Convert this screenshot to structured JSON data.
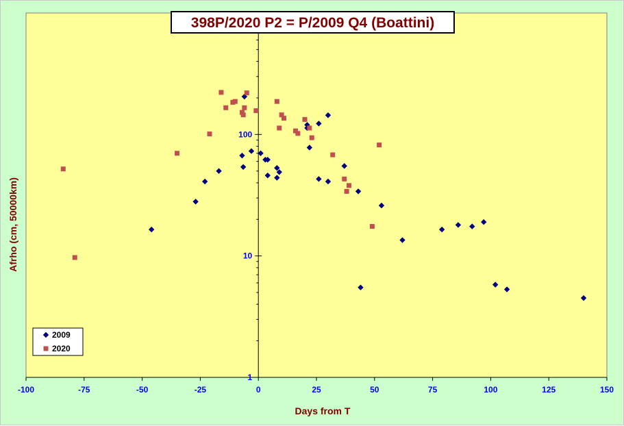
{
  "chart_data": {
    "type": "scatter",
    "title": "398P/2020 P2 = P/2009 Q4 (Boattini)",
    "xlabel": "Days from T",
    "ylabel": "Afrho (cm, 50000km)",
    "xlim": [
      -100,
      150
    ],
    "ylim": [
      1,
      1000
    ],
    "yscale": "log",
    "x_ticks": [
      "-100",
      "-75",
      "-50",
      "-25",
      "0",
      "25",
      "50",
      "75",
      "100",
      "125",
      "150"
    ],
    "y_ticks": [
      "1",
      "10",
      "100"
    ],
    "grid": false,
    "legend_position": "bottom-left",
    "colors": {
      "plot_background": "#ffff99",
      "frame_background": "#ccffcc",
      "text": "#800000",
      "tick_labels": "#0000ff"
    },
    "series": [
      {
        "name": "2009",
        "marker": "diamond",
        "color": "#000080",
        "points": [
          [
            -46,
            16.5
          ],
          [
            -27,
            28
          ],
          [
            -23,
            41
          ],
          [
            -17,
            50
          ],
          [
            -6,
            205
          ],
          [
            -6.5,
            54
          ],
          [
            -7,
            67
          ],
          [
            -3,
            73
          ],
          [
            1,
            70
          ],
          [
            3,
            62
          ],
          [
            4,
            62
          ],
          [
            4,
            46
          ],
          [
            8,
            53
          ],
          [
            8,
            44
          ],
          [
            9,
            49
          ],
          [
            21,
            120
          ],
          [
            21,
            113
          ],
          [
            22,
            78
          ],
          [
            26,
            123
          ],
          [
            26,
            43
          ],
          [
            30,
            144
          ],
          [
            30,
            41
          ],
          [
            37,
            55
          ],
          [
            43,
            34
          ],
          [
            44,
            5.5
          ],
          [
            53,
            26
          ],
          [
            62,
            13.5
          ],
          [
            79,
            16.5
          ],
          [
            86,
            18
          ],
          [
            92,
            17.5
          ],
          [
            97,
            19
          ],
          [
            102,
            5.8
          ],
          [
            107,
            5.3
          ],
          [
            140,
            4.5
          ]
        ]
      },
      {
        "name": "2020",
        "marker": "square",
        "color": "#c0504d",
        "points": [
          [
            -84,
            52
          ],
          [
            -79,
            9.7
          ],
          [
            -35,
            70
          ],
          [
            -21,
            101
          ],
          [
            -16,
            222
          ],
          [
            -14,
            166
          ],
          [
            -11,
            184
          ],
          [
            -10,
            187
          ],
          [
            -7,
            152
          ],
          [
            -6.5,
            145
          ],
          [
            -6,
            166
          ],
          [
            -5,
            220
          ],
          [
            -1,
            157
          ],
          [
            8,
            187
          ],
          [
            9,
            113
          ],
          [
            10,
            145
          ],
          [
            11,
            136
          ],
          [
            16,
            107
          ],
          [
            17,
            102
          ],
          [
            20,
            133
          ],
          [
            22,
            113
          ],
          [
            23,
            94
          ],
          [
            32,
            68
          ],
          [
            37,
            43
          ],
          [
            38,
            34
          ],
          [
            39,
            38
          ],
          [
            49,
            17.5
          ],
          [
            52,
            82
          ]
        ]
      }
    ]
  }
}
